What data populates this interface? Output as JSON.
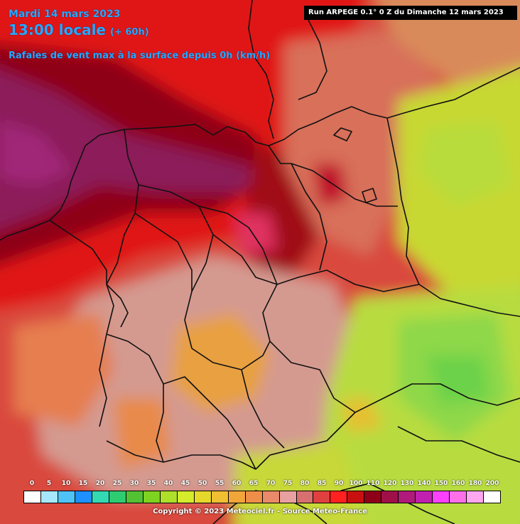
{
  "header": {
    "date": "Mardi 14 mars 2023",
    "time": "13:00 locale",
    "offset": "(+ 60h)",
    "parameter": "Rafales de vent max à la surface depuis 0h (km/h)"
  },
  "run_info": "Run ARPEGE 0.1° 0 Z du Dimanche 12 mars 2023",
  "legend": {
    "labels": [
      "0",
      "5",
      "10",
      "15",
      "20",
      "25",
      "30",
      "35",
      "40",
      "45",
      "50",
      "55",
      "60",
      "65",
      "70",
      "75",
      "80",
      "85",
      "90",
      "100",
      "110",
      "120",
      "130",
      "140",
      "150",
      "160",
      "180",
      "200"
    ],
    "colors": [
      "#ffffff",
      "#a6e8ff",
      "#4fc3f7",
      "#1e90ff",
      "#33d9b2",
      "#2ecc71",
      "#52c234",
      "#7ed321",
      "#aee02a",
      "#d4ec2b",
      "#e6d82a",
      "#f0c032",
      "#f2a53a",
      "#ee8e48",
      "#e98a6a",
      "#e8a0a0",
      "#d87070",
      "#e04040",
      "#ff2020",
      "#c81010",
      "#8e0018",
      "#a01048",
      "#b01a7a",
      "#c020b0",
      "#ff40ff",
      "#ff70e8",
      "#ffa8f0",
      "#ffffff"
    ]
  },
  "map_colors": {
    "very_high": "#8c1a5a",
    "high": "#8e0018",
    "medium_high": "#d81818",
    "medium": "#ff2a2a",
    "moderate": "#d8705a",
    "pinkish": "#d49a90",
    "low": "#e8a040",
    "lower": "#c8d830",
    "lowest": "#a0e040",
    "border": "#111111"
  },
  "copyright": "Copyright © 2023 Meteociel.fr - Source Meteo-France"
}
